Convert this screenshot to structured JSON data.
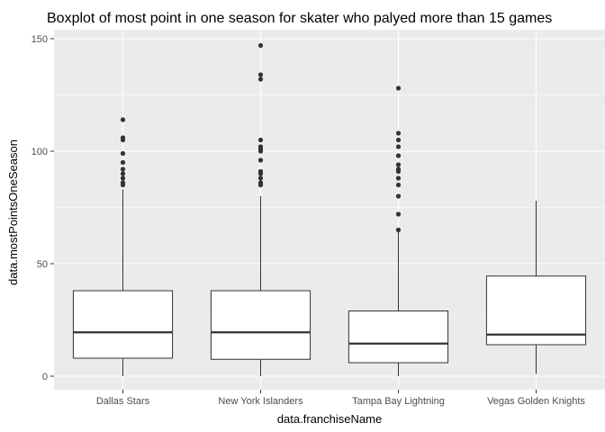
{
  "chart_data": {
    "type": "boxplot",
    "title": "Boxplot of most point in one season for skater who palyed more than 15 games",
    "xlabel": "data.franchiseName",
    "ylabel": "data.mostPointsOneSeason",
    "ylim": [
      -6,
      154
    ],
    "y_ticks": [
      0,
      50,
      100,
      150
    ],
    "grid": true,
    "legend": "none",
    "colors": {
      "panel": "#ebebeb",
      "grid": "#ffffff",
      "box_fill": "#ffffff",
      "box_line": "#333333",
      "outlier": "#333333"
    },
    "categories": [
      "Dallas Stars",
      "New York Islanders",
      "Tampa Bay Lightning",
      "Vegas Golden Knights"
    ],
    "boxes": [
      {
        "category": "Dallas Stars",
        "whisker_low": 0,
        "q1": 8,
        "median": 19.5,
        "q3": 38,
        "whisker_high": 83,
        "outliers": [
          85,
          86,
          88,
          90,
          92,
          95,
          99,
          105,
          106,
          114
        ]
      },
      {
        "category": "New York Islanders",
        "whisker_low": 0,
        "q1": 7.5,
        "median": 19.5,
        "q3": 38,
        "whisker_high": 80,
        "outliers": [
          85,
          86,
          88,
          90,
          91,
          96,
          100,
          101,
          102,
          105,
          132,
          134,
          147
        ]
      },
      {
        "category": "Tampa Bay Lightning",
        "whisker_low": 0,
        "q1": 6,
        "median": 14.5,
        "q3": 29,
        "whisker_high": 64,
        "outliers": [
          65,
          72,
          80,
          85,
          88,
          91,
          92,
          94,
          98,
          102,
          105,
          108,
          128
        ]
      },
      {
        "category": "Vegas Golden Knights",
        "whisker_low": 1,
        "q1": 14,
        "median": 18.5,
        "q3": 44.5,
        "whisker_high": 78,
        "outliers": []
      }
    ]
  }
}
